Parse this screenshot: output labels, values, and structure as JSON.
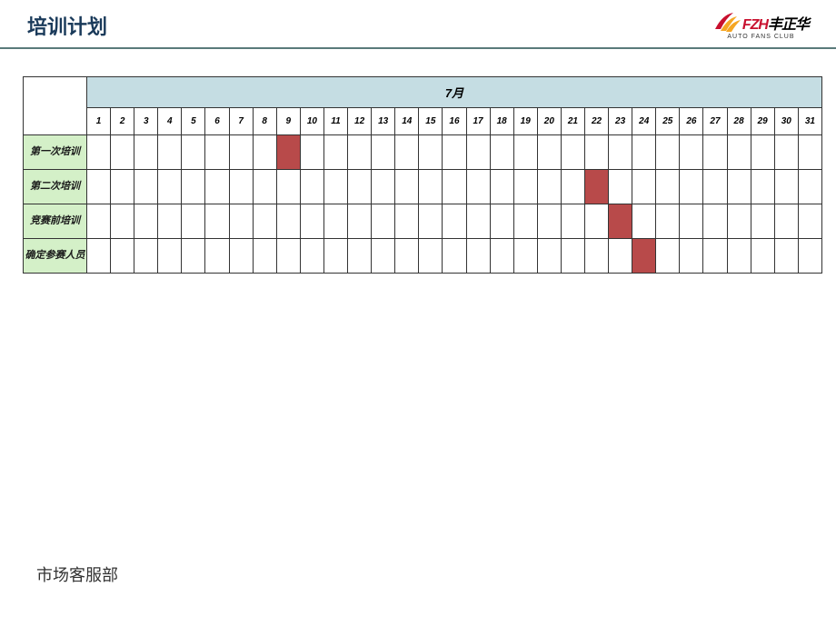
{
  "header": {
    "title": "培训计划",
    "logo": {
      "brand_italic_red": "FZH",
      "brand_cn": "丰正华",
      "subline": "AUTO FANS CLUB",
      "swoosh_colors": [
        "#c8102e",
        "#f5a623",
        "#f5a623"
      ]
    }
  },
  "gantt": {
    "month_label": "7月",
    "days": [
      "1",
      "2",
      "3",
      "4",
      "5",
      "6",
      "7",
      "8",
      "9",
      "10",
      "11",
      "12",
      "13",
      "14",
      "15",
      "16",
      "17",
      "18",
      "19",
      "20",
      "21",
      "22",
      "23",
      "24",
      "25",
      "26",
      "27",
      "28",
      "29",
      "30",
      "31"
    ],
    "rows": [
      {
        "label": "第一次培训",
        "marks": [
          9
        ]
      },
      {
        "label": "第二次培训",
        "marks": [
          22
        ]
      },
      {
        "label": "竞赛前培训",
        "marks": [
          23
        ]
      },
      {
        "label": "确定参赛人员",
        "marks": [
          24
        ]
      }
    ],
    "colors": {
      "month_bg": "#c5dde3",
      "row_label_bg": "#d4f0c8",
      "filled": "#b84a4a",
      "border": "#333333",
      "background": "#ffffff"
    },
    "fontsize": {
      "month": 13,
      "day": 10,
      "row_label": 11
    }
  },
  "footer": {
    "text": "市场客服部"
  }
}
